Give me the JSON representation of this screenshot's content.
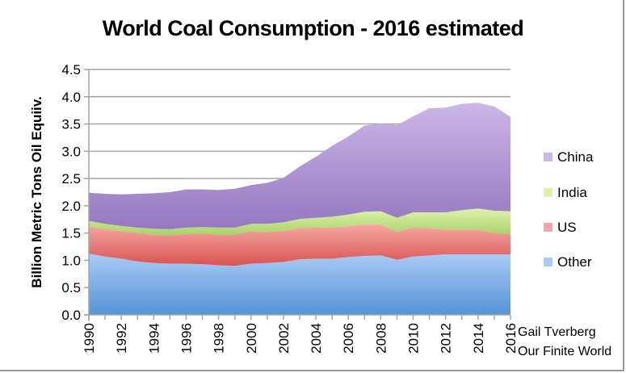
{
  "chart_data": {
    "type": "area",
    "stacked": true,
    "title": "World Coal Consumption - 2016 estimated",
    "xlabel": "",
    "ylabel": "Billion Metric Tons Oil Equiiv.",
    "ylim": [
      0,
      4.5
    ],
    "yticks": [
      "0.0",
      "0.5",
      "1.0",
      "1.5",
      "2.0",
      "2.5",
      "3.0",
      "3.5",
      "4.0",
      "4.5"
    ],
    "ytick_values": [
      0,
      0.5,
      1.0,
      1.5,
      2.0,
      2.5,
      3.0,
      3.5,
      4.0,
      4.5
    ],
    "x": [
      1990,
      1991,
      1992,
      1993,
      1994,
      1995,
      1996,
      1997,
      1998,
      1999,
      2000,
      2001,
      2002,
      2003,
      2004,
      2005,
      2006,
      2007,
      2008,
      2009,
      2010,
      2011,
      2012,
      2013,
      2014,
      2015,
      2016
    ],
    "xticks": [
      "1990",
      "1992",
      "1994",
      "1996",
      "1998",
      "2000",
      "2002",
      "2004",
      "2006",
      "2008",
      "2010",
      "2012",
      "2014",
      "2016"
    ],
    "grid": "horizontal",
    "legend_position": "right",
    "series": [
      {
        "name": "Other",
        "color": "#6fa3e0",
        "values": [
          1.12,
          1.07,
          1.03,
          0.98,
          0.95,
          0.94,
          0.94,
          0.93,
          0.91,
          0.9,
          0.94,
          0.95,
          0.97,
          1.02,
          1.03,
          1.03,
          1.06,
          1.08,
          1.09,
          1.01,
          1.07,
          1.09,
          1.11,
          1.11,
          1.11,
          1.11,
          1.11
        ]
      },
      {
        "name": "US",
        "color": "#e8736f",
        "values": [
          0.5,
          0.5,
          0.5,
          0.52,
          0.52,
          0.52,
          0.54,
          0.56,
          0.56,
          0.57,
          0.59,
          0.57,
          0.57,
          0.57,
          0.57,
          0.57,
          0.57,
          0.58,
          0.57,
          0.51,
          0.53,
          0.5,
          0.45,
          0.45,
          0.45,
          0.39,
          0.37
        ]
      },
      {
        "name": "India",
        "color": "#b6dc7e",
        "values": [
          0.1,
          0.1,
          0.1,
          0.1,
          0.11,
          0.11,
          0.12,
          0.12,
          0.13,
          0.13,
          0.14,
          0.15,
          0.16,
          0.17,
          0.18,
          0.2,
          0.21,
          0.23,
          0.24,
          0.26,
          0.28,
          0.29,
          0.32,
          0.36,
          0.39,
          0.41,
          0.42
        ]
      },
      {
        "name": "China",
        "color": "#a98ad0",
        "values": [
          0.52,
          0.55,
          0.58,
          0.62,
          0.65,
          0.68,
          0.7,
          0.69,
          0.69,
          0.71,
          0.71,
          0.75,
          0.81,
          0.96,
          1.12,
          1.3,
          1.43,
          1.58,
          1.61,
          1.7,
          1.76,
          1.91,
          1.92,
          1.95,
          1.94,
          1.91,
          1.73
        ]
      }
    ],
    "legend": [
      "China",
      "India",
      "US",
      "Other"
    ],
    "annotations": [
      "Gail Tverberg",
      "Our Finite World"
    ]
  }
}
